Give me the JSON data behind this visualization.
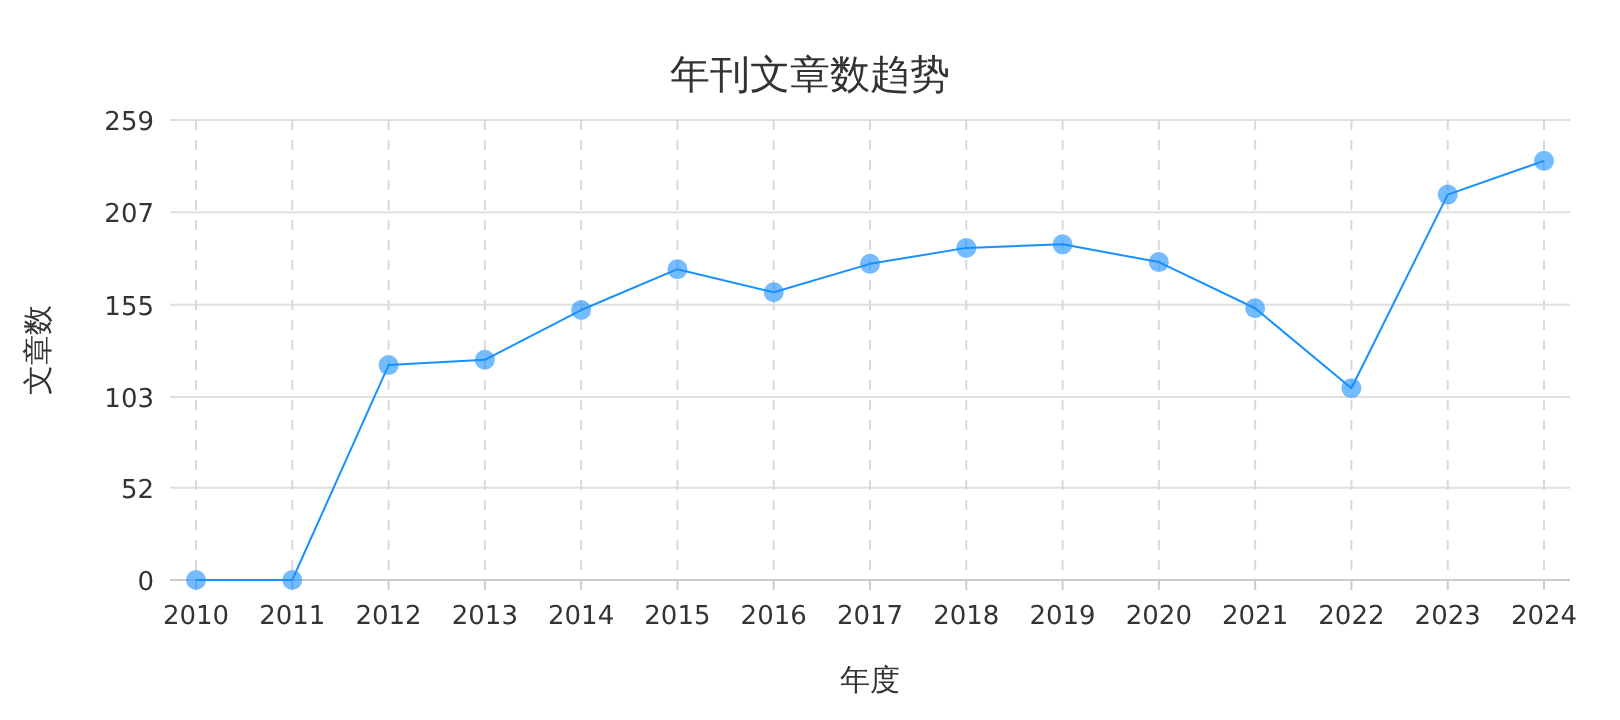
{
  "chart_data": {
    "type": "line",
    "title": "年刊文章数趋势",
    "xlabel": "年度",
    "ylabel": "文章数",
    "categories": [
      "2010",
      "2011",
      "2012",
      "2013",
      "2014",
      "2015",
      "2016",
      "2017",
      "2018",
      "2019",
      "2020",
      "2021",
      "2022",
      "2023",
      "2024"
    ],
    "series": [
      {
        "color": "#1890ff",
        "values": [
          0,
          0,
          121,
          124,
          152,
          175,
          162,
          178,
          187,
          189,
          179,
          153,
          108,
          217,
          236
        ]
      }
    ],
    "ylim": [
      0,
      259
    ],
    "yticks": [
      0,
      52,
      103,
      155,
      207,
      259
    ],
    "grid": true,
    "marker": "circle",
    "line_style": "solid"
  }
}
